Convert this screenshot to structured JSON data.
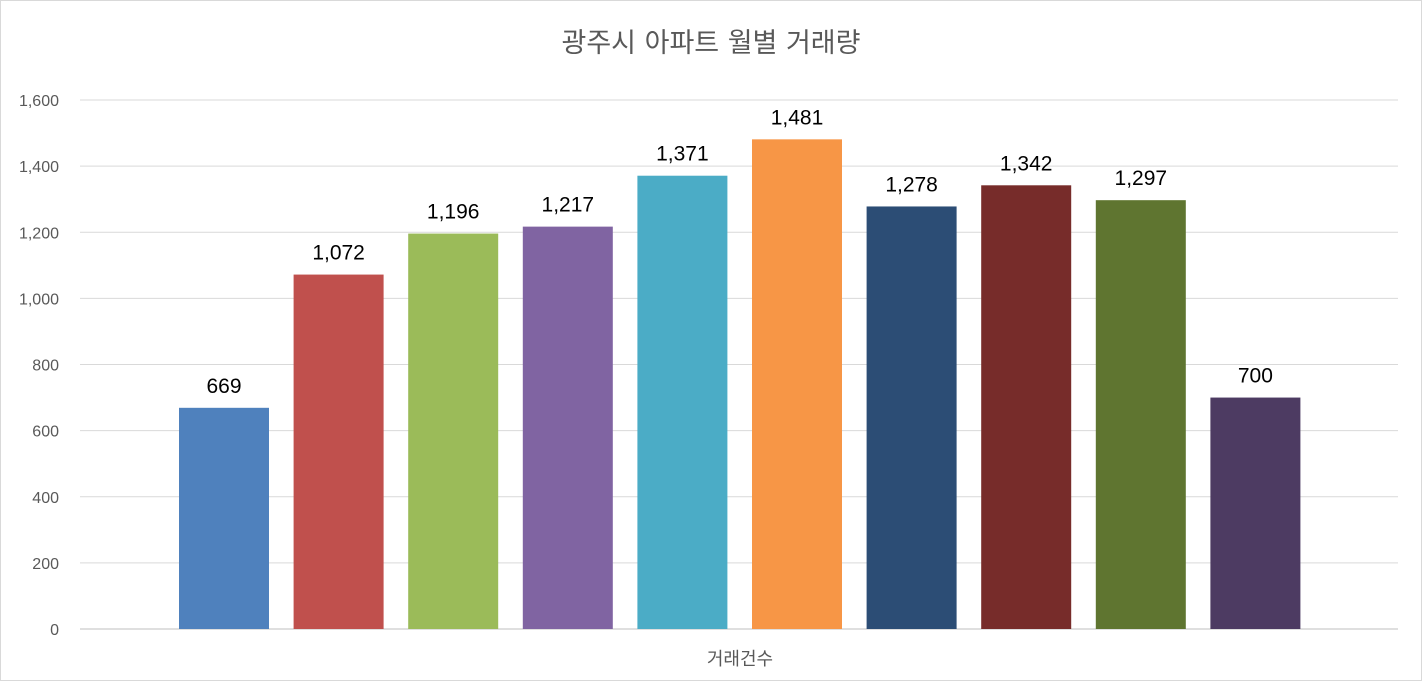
{
  "chart_data": {
    "type": "bar",
    "title": "광주시 아파트 월별 거래량",
    "xlabel": "거래건수",
    "ylabel": "",
    "categories": [
      "",
      "",
      "",
      "",
      "",
      "",
      "",
      "",
      "",
      ""
    ],
    "values": [
      669,
      1072,
      1196,
      1217,
      1371,
      1481,
      1278,
      1342,
      1297,
      700
    ],
    "value_labels": [
      "669",
      "1,072",
      "1,196",
      "1,217",
      "1,371",
      "1,481",
      "1,278",
      "1,342",
      "1,297",
      "700"
    ],
    "colors": [
      "#4f81bd",
      "#c0504d",
      "#9bbb59",
      "#8064a2",
      "#4bacc6",
      "#f79646",
      "#2c4d75",
      "#772c2a",
      "#5f7530",
      "#4d3b62"
    ],
    "ylim": [
      0,
      1600
    ],
    "yticks": [
      0,
      200,
      400,
      600,
      800,
      1000,
      1200,
      1400,
      1600
    ],
    "ytick_labels": [
      "0",
      "200",
      "400",
      "600",
      "800",
      "1,000",
      "1,200",
      "1,400",
      "1,600"
    ],
    "grid": true,
    "legend": "none"
  }
}
